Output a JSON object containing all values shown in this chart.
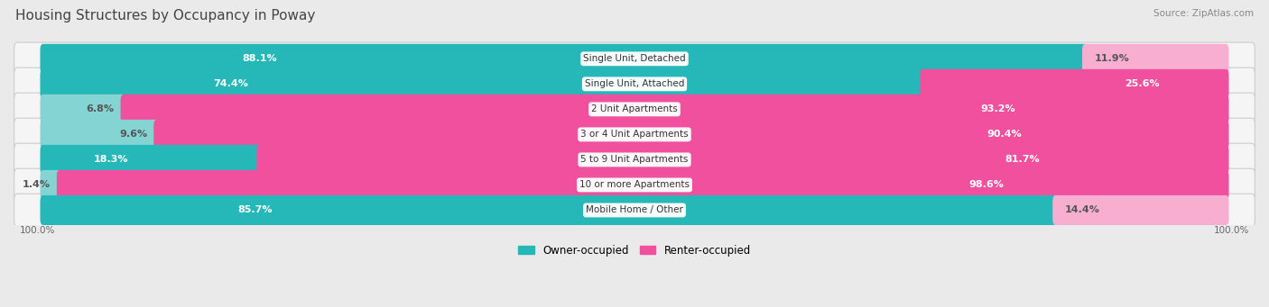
{
  "title": "Housing Structures by Occupancy in Poway",
  "source": "Source: ZipAtlas.com",
  "categories": [
    "Single Unit, Detached",
    "Single Unit, Attached",
    "2 Unit Apartments",
    "3 or 4 Unit Apartments",
    "5 to 9 Unit Apartments",
    "10 or more Apartments",
    "Mobile Home / Other"
  ],
  "owner_pct": [
    88.1,
    74.4,
    6.8,
    9.6,
    18.3,
    1.4,
    85.7
  ],
  "renter_pct": [
    11.9,
    25.6,
    93.2,
    90.4,
    81.7,
    98.6,
    14.4
  ],
  "owner_color": "#26b8b8",
  "renter_color": "#f0509e",
  "renter_color_light": "#f7aed0",
  "owner_color_light": "#85d4d4",
  "bg_color": "#eaeaea",
  "row_bg": "#f5f5f5",
  "title_color": "#444444",
  "source_color": "#888888",
  "legend_owner": "Owner-occupied",
  "legend_renter": "Renter-occupied",
  "owner_label_threshold": 15,
  "renter_label_threshold": 15
}
